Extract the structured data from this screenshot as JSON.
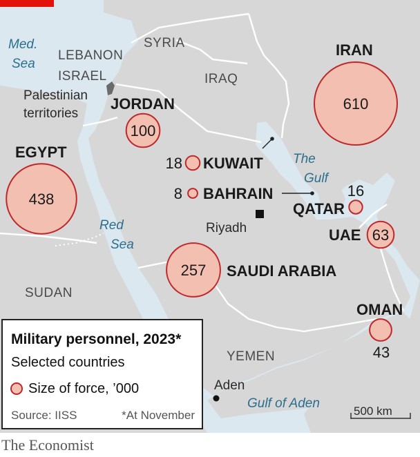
{
  "legend": {
    "title": "Military personnel, 2023*",
    "subtitle": "Selected countries",
    "key_label": "Size of force, ’000",
    "source": "Source: IISS",
    "note": "*At November"
  },
  "chart_data": {
    "type": "proportional-symbol-map",
    "unit": "’000",
    "countries": [
      {
        "name": "IRAN",
        "value": 610
      },
      {
        "name": "EGYPT",
        "value": 438
      },
      {
        "name": "SAUDI ARABIA",
        "value": 257
      },
      {
        "name": "JORDAN",
        "value": 100
      },
      {
        "name": "UAE",
        "value": 63
      },
      {
        "name": "OMAN",
        "value": 43
      },
      {
        "name": "KUWAIT",
        "value": 18
      },
      {
        "name": "QATAR",
        "value": 16
      },
      {
        "name": "BAHRAIN",
        "value": 8
      }
    ]
  },
  "labels": {
    "grey_countries": [
      "SYRIA",
      "LEBANON",
      "ISRAEL",
      "IRAQ",
      "SUDAN",
      "YEMEN"
    ],
    "palestinian": [
      "Palestinian",
      "territories"
    ],
    "seas": [
      "Med.",
      "Sea",
      "Red",
      "Sea",
      "The",
      "Gulf",
      "Gulf of Aden"
    ],
    "cities": [
      "Riyadh",
      "Aden"
    ]
  },
  "scale_bar": "500 km",
  "brand": "The Economist",
  "colors": {
    "land": "#d7d7d7",
    "sea": "#dbe8ef",
    "border": "#ffffff",
    "bubble_fill": "#f2bfb1",
    "bubble_stroke": "#c0262a",
    "sea_text": "#2a6f8e",
    "accent": "#e3120b"
  }
}
